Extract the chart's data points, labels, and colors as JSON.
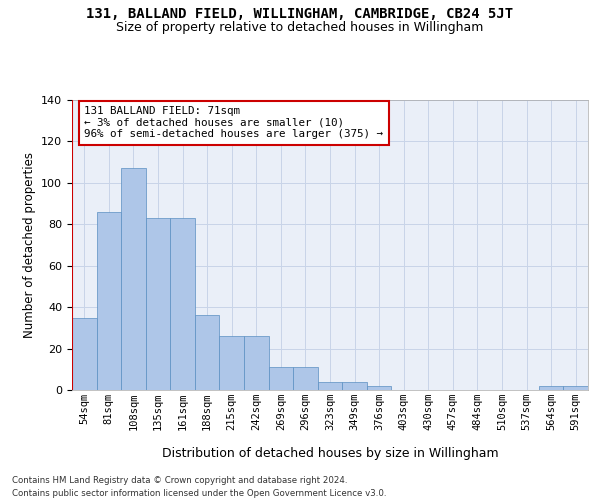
{
  "title": "131, BALLAND FIELD, WILLINGHAM, CAMBRIDGE, CB24 5JT",
  "subtitle": "Size of property relative to detached houses in Willingham",
  "xlabel": "Distribution of detached houses by size in Willingham",
  "ylabel": "Number of detached properties",
  "categories": [
    "54sqm",
    "81sqm",
    "108sqm",
    "135sqm",
    "161sqm",
    "188sqm",
    "215sqm",
    "242sqm",
    "269sqm",
    "296sqm",
    "323sqm",
    "349sqm",
    "376sqm",
    "403sqm",
    "430sqm",
    "457sqm",
    "484sqm",
    "510sqm",
    "537sqm",
    "564sqm",
    "591sqm"
  ],
  "values": [
    35,
    86,
    107,
    83,
    83,
    36,
    26,
    26,
    11,
    11,
    4,
    4,
    2,
    0,
    0,
    0,
    0,
    0,
    0,
    2,
    2
  ],
  "bar_color": "#aec6e8",
  "bar_edge_color": "#5a8fc2",
  "highlight_color": "#cc0000",
  "annotation_text": "131 BALLAND FIELD: 71sqm\n← 3% of detached houses are smaller (10)\n96% of semi-detached houses are larger (375) →",
  "ylim": [
    0,
    140
  ],
  "yticks": [
    0,
    20,
    40,
    60,
    80,
    100,
    120,
    140
  ],
  "grid_color": "#c8d4e8",
  "bg_color": "#eaeff8",
  "footer_line1": "Contains HM Land Registry data © Crown copyright and database right 2024.",
  "footer_line2": "Contains public sector information licensed under the Open Government Licence v3.0.",
  "title_fontsize": 10,
  "subtitle_fontsize": 9,
  "bar_linewidth": 0.5
}
